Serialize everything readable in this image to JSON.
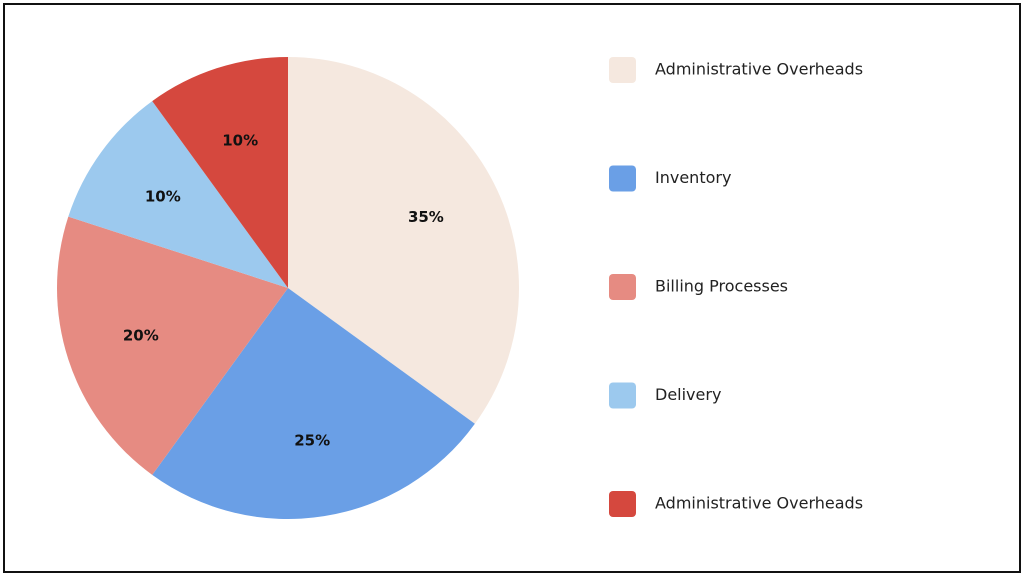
{
  "chart_data": {
    "type": "pie",
    "categories": [
      "Administrative Overheads",
      "Inventory",
      "Billing Processes",
      "Delivery",
      "Administrative Overheads"
    ],
    "values": [
      35,
      25,
      20,
      10,
      10
    ],
    "value_labels": [
      "35%",
      "25%",
      "20%",
      "10%",
      "10%"
    ],
    "colors": [
      "#f5e8df",
      "#6a9fe6",
      "#e68b82",
      "#9cc9ee",
      "#d5483e"
    ],
    "legend": "right"
  }
}
